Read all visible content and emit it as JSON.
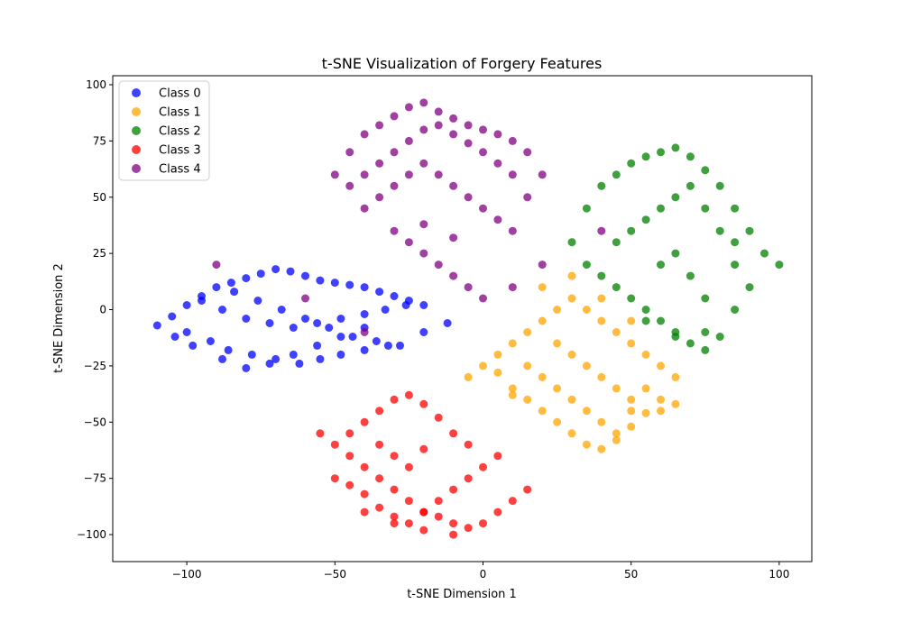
{
  "chart_data": {
    "type": "scatter",
    "title": "t-SNE Visualization of Forgery Features",
    "xlabel": "t-SNE Dimension 1",
    "ylabel": "t-SNE Dimension 2",
    "xlim": [
      -125,
      111
    ],
    "ylim": [
      -112,
      104
    ],
    "xticks": [
      -100,
      -50,
      0,
      50,
      100
    ],
    "yticks": [
      -100,
      -75,
      -50,
      -25,
      0,
      25,
      50,
      75,
      100
    ],
    "grid": false,
    "legend_position": "top-left",
    "series": [
      {
        "name": "Class 0",
        "color": "#0000ff",
        "x": [
          -110,
          -105,
          -100,
          -95,
          -90,
          -85,
          -80,
          -75,
          -70,
          -65,
          -60,
          -55,
          -50,
          -45,
          -40,
          -35,
          -30,
          -25,
          -20,
          -100,
          -92,
          -86,
          -78,
          -70,
          -62,
          -55,
          -48,
          -40,
          -32,
          -95,
          -88,
          -80,
          -72,
          -64,
          -56,
          -48,
          -40,
          -33,
          -26,
          -84,
          -76,
          -68,
          -60,
          -52,
          -44,
          -36,
          -28,
          -20,
          -12,
          -88,
          -80,
          -72,
          -64,
          -56,
          -48,
          -40,
          -104,
          -98
        ],
        "y": [
          -7,
          -3,
          2,
          6,
          10,
          12,
          14,
          16,
          18,
          17,
          15,
          13,
          12,
          11,
          10,
          8,
          6,
          4,
          2,
          -10,
          -14,
          -18,
          -20,
          -22,
          -24,
          -22,
          -20,
          -18,
          -16,
          4,
          0,
          -4,
          -6,
          -8,
          -6,
          -4,
          -2,
          0,
          2,
          8,
          4,
          0,
          -4,
          -8,
          -12,
          -14,
          -16,
          -10,
          -6,
          -22,
          -26,
          -24,
          -20,
          -16,
          -12,
          -8,
          -12,
          -16
        ]
      },
      {
        "name": "Class 1",
        "color": "#ffa500",
        "x": [
          5,
          10,
          15,
          20,
          25,
          30,
          35,
          40,
          45,
          50,
          55,
          60,
          65,
          10,
          15,
          20,
          25,
          30,
          35,
          40,
          45,
          50,
          55,
          60,
          15,
          20,
          25,
          30,
          35,
          40,
          45,
          50,
          55,
          25,
          30,
          35,
          40,
          45,
          50,
          20,
          30,
          40,
          50,
          -5,
          0,
          5,
          10,
          60,
          65
        ],
        "y": [
          -20,
          -15,
          -10,
          -5,
          0,
          5,
          0,
          -5,
          -10,
          -15,
          -20,
          -25,
          -30,
          -35,
          -40,
          -45,
          -50,
          -55,
          -60,
          -62,
          -58,
          -52,
          -46,
          -40,
          -25,
          -30,
          -35,
          -40,
          -45,
          -50,
          -55,
          -45,
          -35,
          -15,
          -20,
          -25,
          -30,
          -35,
          -40,
          10,
          15,
          5,
          -5,
          -30,
          -25,
          -28,
          -38,
          -45,
          -42
        ]
      },
      {
        "name": "Class 2",
        "color": "#008000",
        "x": [
          30,
          35,
          40,
          45,
          50,
          55,
          60,
          65,
          70,
          75,
          80,
          85,
          90,
          95,
          100,
          35,
          40,
          45,
          50,
          55,
          60,
          65,
          70,
          75,
          80,
          85,
          90,
          45,
          50,
          55,
          60,
          65,
          70,
          75,
          80,
          85,
          60,
          65,
          70,
          75,
          55,
          65,
          75,
          85
        ],
        "y": [
          30,
          45,
          55,
          60,
          65,
          68,
          70,
          72,
          68,
          62,
          55,
          45,
          35,
          25,
          20,
          20,
          15,
          10,
          5,
          0,
          -5,
          -10,
          -15,
          -18,
          -12,
          0,
          10,
          30,
          35,
          40,
          45,
          50,
          55,
          45,
          35,
          30,
          20,
          25,
          15,
          5,
          -5,
          -12,
          -10,
          20
        ]
      },
      {
        "name": "Class 3",
        "color": "#ff0000",
        "x": [
          -55,
          -50,
          -45,
          -40,
          -35,
          -30,
          -25,
          -20,
          -15,
          -10,
          -5,
          0,
          5,
          10,
          15,
          -50,
          -45,
          -40,
          -35,
          -30,
          -25,
          -20,
          -15,
          -10,
          -5,
          0,
          5,
          -45,
          -40,
          -35,
          -30,
          -25,
          -20,
          -15,
          -10,
          -5,
          -35,
          -30,
          -25,
          -20,
          -40,
          -30,
          -20,
          -10
        ],
        "y": [
          -55,
          -60,
          -65,
          -70,
          -75,
          -80,
          -85,
          -90,
          -92,
          -95,
          -97,
          -95,
          -90,
          -85,
          -80,
          -75,
          -78,
          -82,
          -88,
          -92,
          -95,
          -90,
          -85,
          -80,
          -75,
          -70,
          -65,
          -55,
          -50,
          -45,
          -40,
          -38,
          -42,
          -48,
          -55,
          -60,
          -60,
          -65,
          -70,
          -62,
          -90,
          -95,
          -98,
          -100
        ]
      },
      {
        "name": "Class 4",
        "color": "#800080",
        "x": [
          -50,
          -45,
          -40,
          -35,
          -30,
          -25,
          -20,
          -15,
          -10,
          -5,
          0,
          5,
          10,
          15,
          20,
          -45,
          -40,
          -35,
          -30,
          -25,
          -20,
          -15,
          -10,
          -5,
          0,
          5,
          10,
          15,
          -40,
          -35,
          -30,
          -25,
          -20,
          -15,
          -10,
          -5,
          0,
          5,
          10,
          -25,
          -20,
          -15,
          -10,
          -5,
          0,
          -30,
          -20,
          -10,
          -90,
          -60,
          -40,
          20,
          10,
          40
        ],
        "y": [
          60,
          70,
          78,
          82,
          86,
          90,
          92,
          88,
          85,
          82,
          80,
          78,
          75,
          70,
          60,
          55,
          60,
          65,
          70,
          75,
          80,
          82,
          78,
          74,
          70,
          65,
          60,
          50,
          45,
          50,
          55,
          60,
          65,
          60,
          55,
          50,
          45,
          40,
          35,
          30,
          25,
          20,
          15,
          10,
          5,
          35,
          38,
          32,
          20,
          5,
          -10,
          20,
          10,
          35
        ]
      }
    ]
  }
}
